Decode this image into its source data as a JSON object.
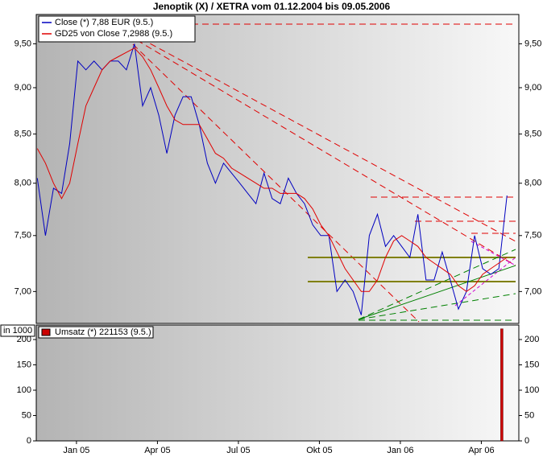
{
  "chart_data": [
    {
      "type": "line",
      "title": "Jenoptik (X) / XETRA vom 01.12.2004 bis 09.05.2006",
      "log_y": true,
      "x": [
        -0.45,
        -0.15,
        0.15,
        0.45,
        0.75,
        1.05,
        1.35,
        1.65,
        1.95,
        2.25,
        2.55,
        2.85,
        3.15,
        3.45,
        3.75,
        4.05,
        4.35,
        4.65,
        4.95,
        5.25,
        5.55,
        5.85,
        6.15,
        6.45,
        6.75,
        7.05,
        7.35,
        7.65,
        7.95,
        8.25,
        8.55,
        8.85,
        9.15,
        9.45,
        9.75,
        10.05,
        10.35,
        10.65,
        10.95,
        11.25,
        11.55,
        11.85,
        12.15,
        12.45,
        12.75,
        13.05,
        13.35,
        13.65,
        13.95,
        14.25,
        14.55,
        14.85,
        15.15,
        15.45,
        15.75,
        16.05,
        16.35,
        16.65,
        16.95
      ],
      "series": [
        {
          "name": "Close (*) 7,88 EUR (9.5.)",
          "color": "#0000c0",
          "values": [
            8.05,
            7.5,
            7.95,
            7.9,
            8.4,
            9.3,
            9.2,
            9.3,
            9.2,
            9.3,
            9.3,
            9.2,
            9.5,
            8.8,
            9.0,
            8.7,
            8.3,
            8.7,
            8.9,
            8.9,
            8.6,
            8.2,
            8.0,
            8.2,
            8.1,
            8.0,
            7.9,
            7.8,
            8.1,
            7.85,
            7.8,
            8.05,
            7.9,
            7.8,
            7.6,
            7.5,
            7.5,
            7.0,
            7.1,
            7.0,
            6.8,
            7.5,
            7.7,
            7.4,
            7.5,
            7.4,
            7.3,
            7.7,
            7.1,
            7.1,
            7.35,
            7.1,
            6.85,
            7.0,
            7.5,
            7.2,
            7.15,
            7.2,
            7.88
          ]
        },
        {
          "name": "GD25 von Close 7,2988 (9.5.)",
          "color": "#e00000",
          "values": [
            8.35,
            8.2,
            8.0,
            7.85,
            8.0,
            8.4,
            8.8,
            9.0,
            9.2,
            9.3,
            9.35,
            9.4,
            9.45,
            9.35,
            9.2,
            9.0,
            8.8,
            8.65,
            8.6,
            8.6,
            8.6,
            8.45,
            8.3,
            8.25,
            8.15,
            8.1,
            8.05,
            8.0,
            7.95,
            7.95,
            7.9,
            7.9,
            7.9,
            7.85,
            7.75,
            7.6,
            7.5,
            7.35,
            7.2,
            7.1,
            7.0,
            7.0,
            7.1,
            7.3,
            7.45,
            7.5,
            7.45,
            7.4,
            7.3,
            7.25,
            7.2,
            7.15,
            7.05,
            7.0,
            7.05,
            7.15,
            7.2,
            7.25,
            7.3
          ]
        }
      ],
      "xlim": [
        -0.49,
        17.39
      ],
      "ylim": [
        6.73,
        9.85
      ],
      "yticks": [
        {
          "value": 7.0,
          "label": "7,00"
        },
        {
          "value": 7.5,
          "label": "7,50"
        },
        {
          "value": 8.0,
          "label": "8,00"
        },
        {
          "value": 8.5,
          "label": "8,50"
        },
        {
          "value": 9.0,
          "label": "9,00"
        },
        {
          "value": 9.5,
          "label": "9,50"
        }
      ]
    },
    {
      "type": "bar",
      "y_label": "in 1000",
      "x": [
        16.76
      ],
      "series": [
        {
          "name": "Umsatz (*) 221153 (9.5.)",
          "color": "#cc0000",
          "values": [
            221.153
          ]
        }
      ],
      "xlim": [
        -0.49,
        17.39
      ],
      "xticks": [
        {
          "value": 1,
          "label": "Jan 05"
        },
        {
          "value": 4,
          "label": "Apr 05"
        },
        {
          "value": 7,
          "label": "Jul 05"
        },
        {
          "value": 10,
          "label": "Okt 05"
        },
        {
          "value": 13,
          "label": "Jan 06"
        },
        {
          "value": 16,
          "label": "Apr 06"
        }
      ],
      "ylim": [
        0,
        228.6
      ],
      "yticks": [
        0,
        50,
        100,
        150,
        200
      ]
    }
  ]
}
